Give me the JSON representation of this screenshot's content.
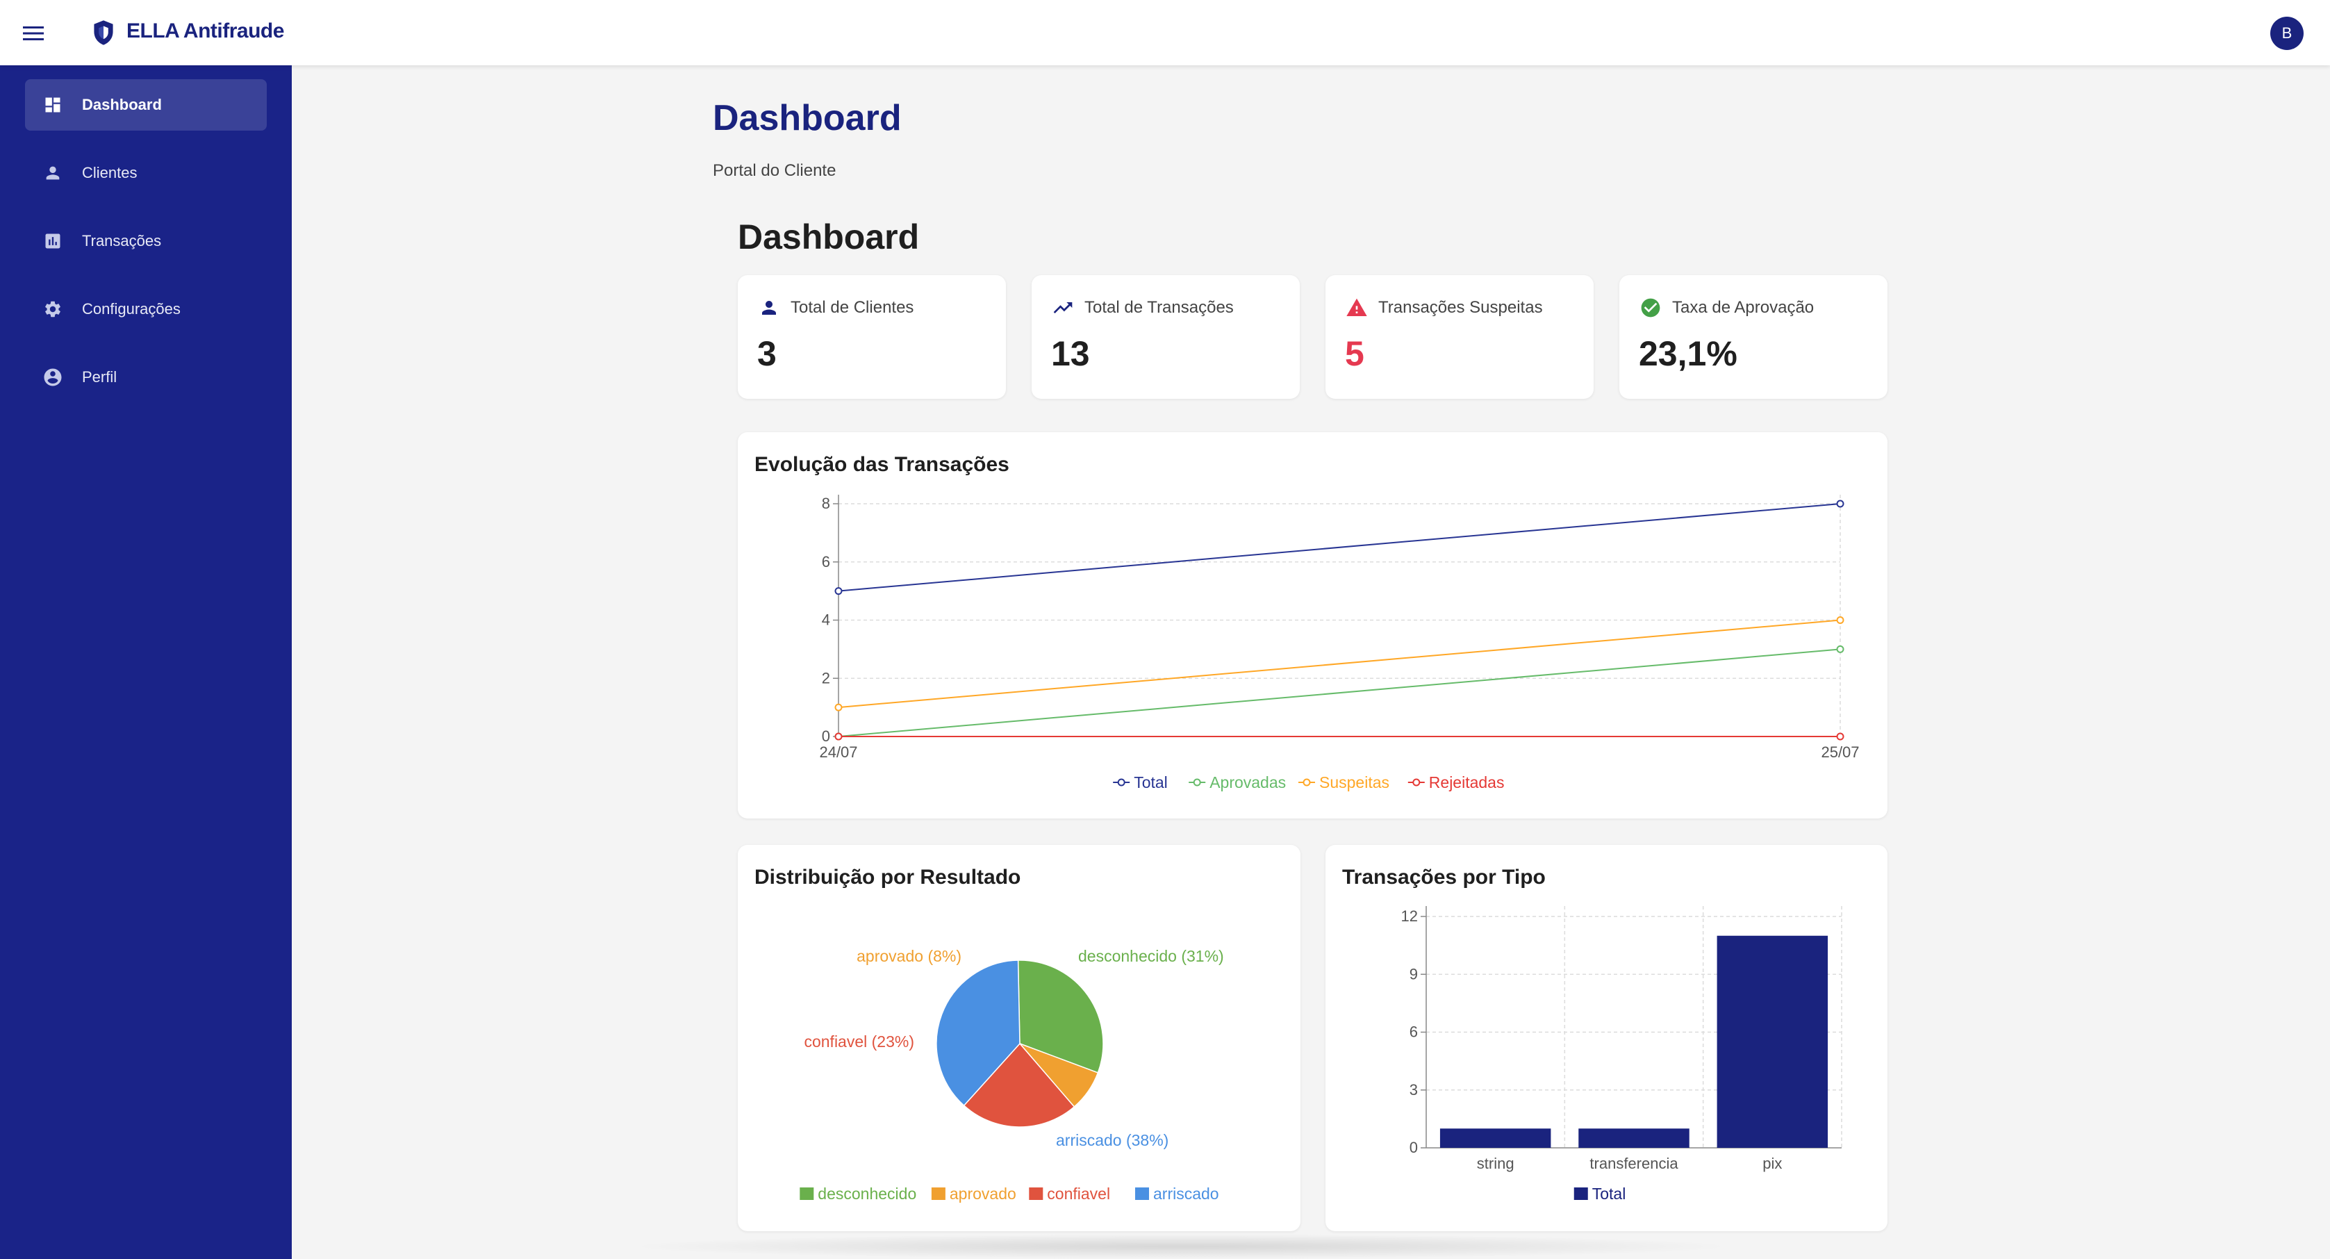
{
  "app": {
    "title": "ELLA Antifraude",
    "user_initial": "B"
  },
  "sidebar": {
    "items": [
      {
        "label": "Dashboard",
        "icon": "dashboard-icon",
        "active": true
      },
      {
        "label": "Clientes",
        "icon": "person-icon"
      },
      {
        "label": "Transações",
        "icon": "bar-chart-icon"
      },
      {
        "label": "Configurações",
        "icon": "gear-icon"
      },
      {
        "label": "Perfil",
        "icon": "account-circle-icon"
      }
    ]
  },
  "header": {
    "title": "Dashboard",
    "subtitle": "Portal do Cliente"
  },
  "section": {
    "title": "Dashboard"
  },
  "stats": [
    {
      "label": "Total de Clientes",
      "value": "3",
      "icon": "person-icon",
      "color": "#1a237e"
    },
    {
      "label": "Total de Transações",
      "value": "13",
      "icon": "trending-up-icon",
      "color": "#1a237e"
    },
    {
      "label": "Transações Suspeitas",
      "value": "5",
      "icon": "warning-icon",
      "color": "#e53950"
    },
    {
      "label": "Taxa de Aprovação",
      "value": "23,1%",
      "icon": "check-circle-icon",
      "color": "#43a047"
    }
  ],
  "chart_data": [
    {
      "type": "line",
      "title": "Evolução das Transações",
      "x": [
        "24/07",
        "25/07"
      ],
      "ylim": [
        0,
        8
      ],
      "yticks": [
        "0",
        "2",
        "4",
        "6",
        "8"
      ],
      "grid": true,
      "legend": "bottom",
      "series": [
        {
          "name": "Total",
          "values": [
            5,
            8
          ],
          "color": "#283593"
        },
        {
          "name": "Aprovadas",
          "values": [
            0,
            3
          ],
          "color": "#66bb6a"
        },
        {
          "name": "Suspeitas",
          "values": [
            1,
            4
          ],
          "color": "#ffa726"
        },
        {
          "name": "Rejeitadas",
          "values": [
            0,
            0
          ],
          "color": "#e53935"
        }
      ]
    },
    {
      "type": "pie",
      "title": "Distribuição por Resultado",
      "legend": "bottom",
      "slices": [
        {
          "name": "desconhecido",
          "value": 31,
          "label": "desconhecido (31%)",
          "color": "#6ab04c"
        },
        {
          "name": "aprovado",
          "value": 8,
          "label": "aprovado (8%)",
          "color": "#f0a030"
        },
        {
          "name": "confiavel",
          "value": 23,
          "label": "confiavel (23%)",
          "color": "#e0533e"
        },
        {
          "name": "arriscado",
          "value": 38,
          "label": "arriscado (38%)",
          "color": "#4a90e2"
        }
      ]
    },
    {
      "type": "bar",
      "title": "Transações por Tipo",
      "categories": [
        "string",
        "transferencia",
        "pix"
      ],
      "ylim": [
        0,
        12
      ],
      "yticks": [
        "0",
        "3",
        "6",
        "9",
        "12"
      ],
      "grid": true,
      "legend": "bottom",
      "series": [
        {
          "name": "Total",
          "values": [
            1,
            1,
            11
          ],
          "color": "#1a237e"
        }
      ]
    }
  ]
}
